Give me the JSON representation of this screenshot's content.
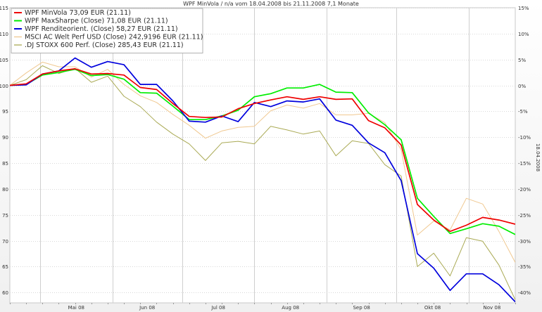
{
  "chart_data": {
    "type": "line",
    "title": "WPF MinVola / n/a vom 18.04.2008 bis 21.11.2008 7,1 Monate",
    "right_axis_label": "18.04.2008",
    "x_labels": [
      "Mai 08",
      "Jun 08",
      "Jul 08",
      "Aug 08",
      "Sep 08",
      "Okt 08",
      "Nov 08"
    ],
    "x_range": [
      "2008-04-18",
      "2008-11-21"
    ],
    "y_left_ticks": [
      115,
      110,
      105,
      100,
      95,
      90,
      85,
      80,
      75,
      70,
      65,
      60
    ],
    "y_right_ticks": [
      "15%",
      "10%",
      "5%",
      "0%",
      "-5%",
      "-10%",
      "-15%",
      "-20%",
      "-25%",
      "-30%",
      "-35%",
      "-40%"
    ],
    "ylim": [
      58,
      115
    ],
    "grid": true,
    "legend": "top-left",
    "series": [
      {
        "name": "WPF MinVola 73,09 EUR (21.11)",
        "color": "#ee0000",
        "x": [
          "2008-04-18",
          "2008-04-25",
          "2008-05-02",
          "2008-05-09",
          "2008-05-16",
          "2008-05-23",
          "2008-05-30",
          "2008-06-06",
          "2008-06-13",
          "2008-06-20",
          "2008-06-27",
          "2008-07-04",
          "2008-07-11",
          "2008-07-18",
          "2008-07-25",
          "2008-08-01",
          "2008-08-08",
          "2008-08-15",
          "2008-08-22",
          "2008-08-29",
          "2008-09-05",
          "2008-09-12",
          "2008-09-19",
          "2008-09-26",
          "2008-10-03",
          "2008-10-10",
          "2008-10-17",
          "2008-10-24",
          "2008-10-31",
          "2008-11-07",
          "2008-11-14",
          "2008-11-21"
        ],
        "values": [
          100,
          100.3,
          102.2,
          102.8,
          103.2,
          102.2,
          102.3,
          102,
          99.6,
          99.2,
          96.5,
          94,
          93.8,
          93.9,
          95.5,
          96.5,
          97.2,
          97.8,
          97.3,
          97.8,
          97.3,
          97.4,
          93.2,
          91.8,
          88.5,
          77,
          74,
          71.8,
          73,
          74.5,
          74,
          73.2
        ]
      },
      {
        "name": "WPF MaxSharpe (Close) 71,08 EUR (21.11)",
        "color": "#00ee00",
        "x": [
          "2008-04-18",
          "2008-04-25",
          "2008-05-02",
          "2008-05-09",
          "2008-05-16",
          "2008-05-23",
          "2008-05-30",
          "2008-06-06",
          "2008-06-13",
          "2008-06-20",
          "2008-06-27",
          "2008-07-04",
          "2008-07-11",
          "2008-07-18",
          "2008-07-25",
          "2008-08-01",
          "2008-08-08",
          "2008-08-15",
          "2008-08-22",
          "2008-08-29",
          "2008-09-05",
          "2008-09-12",
          "2008-09-19",
          "2008-09-26",
          "2008-10-03",
          "2008-10-10",
          "2008-10-17",
          "2008-10-24",
          "2008-10-31",
          "2008-11-07",
          "2008-11-14",
          "2008-11-21"
        ],
        "values": [
          100,
          100.2,
          102,
          102.5,
          103.1,
          101.9,
          102.1,
          101.2,
          98.6,
          98.5,
          96,
          93.4,
          93.4,
          94.1,
          95.2,
          97.8,
          98.4,
          99.5,
          99.5,
          100.2,
          98.7,
          98.6,
          94.7,
          92.4,
          89.5,
          78.2,
          74.7,
          71.4,
          72.3,
          73.3,
          72.8,
          71.2
        ]
      },
      {
        "name": "WPF Renditeorient. (Close) 58,27 EUR (21.11)",
        "color": "#0000dd",
        "x": [
          "2008-04-18",
          "2008-04-25",
          "2008-05-02",
          "2008-05-09",
          "2008-05-16",
          "2008-05-23",
          "2008-05-30",
          "2008-06-06",
          "2008-06-13",
          "2008-06-20",
          "2008-06-27",
          "2008-07-04",
          "2008-07-11",
          "2008-07-18",
          "2008-07-25",
          "2008-08-01",
          "2008-08-08",
          "2008-08-15",
          "2008-08-22",
          "2008-08-29",
          "2008-09-05",
          "2008-09-12",
          "2008-09-19",
          "2008-09-26",
          "2008-10-03",
          "2008-10-10",
          "2008-10-17",
          "2008-10-24",
          "2008-10-31",
          "2008-11-07",
          "2008-11-14",
          "2008-11-21"
        ],
        "values": [
          100,
          100.1,
          102.2,
          102.8,
          105.3,
          103.5,
          104.6,
          104,
          100.2,
          100.2,
          97,
          93.1,
          92.9,
          94.1,
          93,
          96.7,
          95.9,
          97,
          96.8,
          97.4,
          93.3,
          92.3,
          88.9,
          87,
          81.6,
          67.5,
          64.7,
          60.4,
          63.6,
          63.6,
          61.5,
          58.2
        ]
      },
      {
        "name": "MSCI AC Welt Perf USD (Close) 242,9196 EUR (21.11)",
        "color": "#f0c890",
        "x": [
          "2008-04-18",
          "2008-04-25",
          "2008-05-02",
          "2008-05-09",
          "2008-05-16",
          "2008-05-23",
          "2008-05-30",
          "2008-06-06",
          "2008-06-13",
          "2008-06-20",
          "2008-06-27",
          "2008-07-04",
          "2008-07-11",
          "2008-07-18",
          "2008-07-25",
          "2008-08-01",
          "2008-08-08",
          "2008-08-15",
          "2008-08-22",
          "2008-08-29",
          "2008-09-05",
          "2008-09-12",
          "2008-09-19",
          "2008-09-26",
          "2008-10-03",
          "2008-10-10",
          "2008-10-17",
          "2008-10-24",
          "2008-10-31",
          "2008-11-07",
          "2008-11-14",
          "2008-11-21"
        ],
        "values": [
          100,
          102.4,
          104.5,
          103.6,
          103.6,
          101.6,
          103.1,
          100.2,
          98,
          96.7,
          94.4,
          92.3,
          89.8,
          91.2,
          91.9,
          92.1,
          95.1,
          96.2,
          95.6,
          96.5,
          94.3,
          94.3,
          94.6,
          92.8,
          87.6,
          71.1,
          73.8,
          72.1,
          78.2,
          77.1,
          71.8,
          65.8
        ]
      },
      {
        "name": ".DJ STOXX 600 Perf. (Close) 285,43 EUR (21.11)",
        "color": "#aaaa55",
        "x": [
          "2008-04-18",
          "2008-04-25",
          "2008-05-02",
          "2008-05-09",
          "2008-05-16",
          "2008-05-23",
          "2008-05-30",
          "2008-06-06",
          "2008-06-13",
          "2008-06-20",
          "2008-06-27",
          "2008-07-04",
          "2008-07-11",
          "2008-07-18",
          "2008-07-25",
          "2008-08-01",
          "2008-08-08",
          "2008-08-15",
          "2008-08-22",
          "2008-08-29",
          "2008-09-05",
          "2008-09-12",
          "2008-09-19",
          "2008-09-26",
          "2008-10-03",
          "2008-10-10",
          "2008-10-17",
          "2008-10-24",
          "2008-10-31",
          "2008-11-07",
          "2008-11-14",
          "2008-11-21"
        ],
        "values": [
          100,
          101.1,
          103.8,
          102.3,
          103.3,
          100.6,
          101.8,
          97.9,
          95.9,
          92.9,
          90.6,
          88.7,
          85.5,
          88.9,
          89.2,
          88.7,
          92.1,
          91.4,
          90.6,
          91.2,
          86.4,
          89.3,
          88.8,
          84.7,
          82.5,
          65,
          67.6,
          63.2,
          70.6,
          69.9,
          65.3,
          58.6
        ]
      }
    ]
  }
}
